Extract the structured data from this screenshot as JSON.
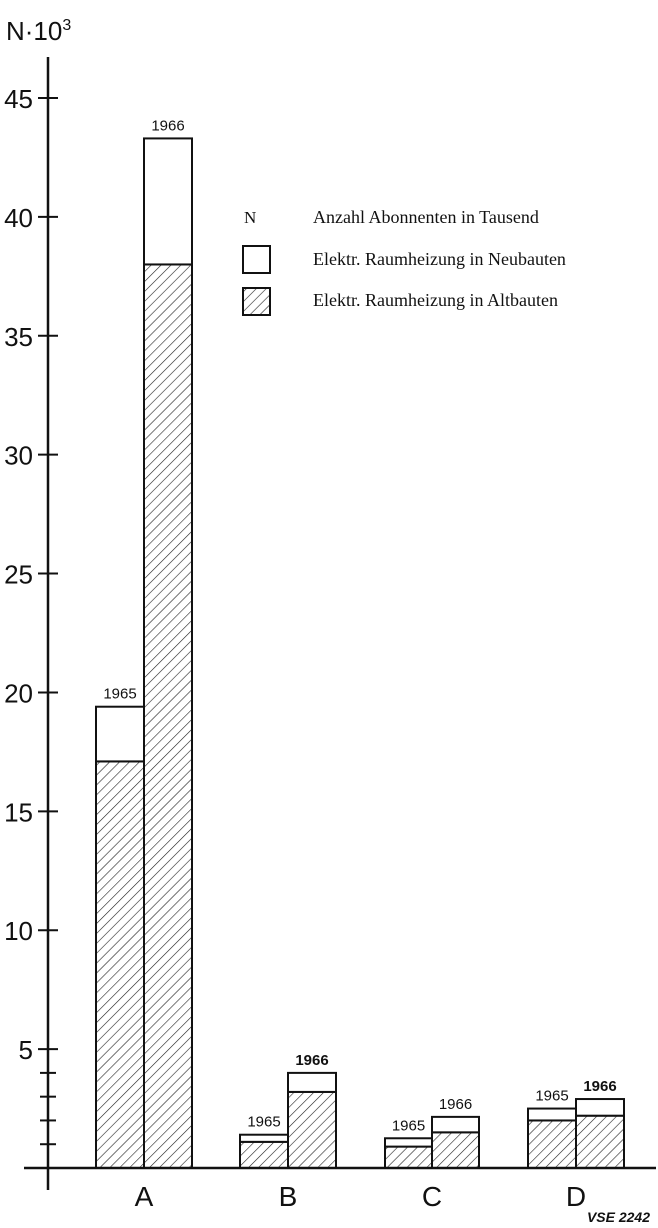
{
  "chart_data": {
    "type": "bar",
    "stacked": true,
    "ylabel_base": "N·10",
    "ylabel_exp": "3",
    "ylim": [
      0,
      47
    ],
    "yticks_labeled": [
      5,
      10,
      15,
      20,
      25,
      30,
      35,
      40,
      45
    ],
    "yticks_minor": [
      1,
      2,
      3,
      4
    ],
    "categories": [
      "A",
      "B",
      "C",
      "D"
    ],
    "bar_labels": [
      "1965",
      "1966"
    ],
    "series": [
      {
        "name": "Elektr. Raumheizung in Altbauten",
        "fill": "hatched",
        "values": {
          "A": [
            17.1,
            38.0
          ],
          "B": [
            1.1,
            3.2
          ],
          "C": [
            0.9,
            1.5
          ],
          "D": [
            2.0,
            2.2
          ]
        }
      },
      {
        "name": "Elektr. Raumheizung in Neubauten",
        "fill": "white",
        "values": {
          "A": [
            2.3,
            5.3
          ],
          "B": [
            0.3,
            0.8
          ],
          "C": [
            0.35,
            0.65
          ],
          "D": [
            0.5,
            0.7
          ]
        }
      }
    ],
    "totals": {
      "A": [
        19.4,
        43.3
      ],
      "B": [
        1.4,
        4.0
      ],
      "C": [
        1.25,
        2.15
      ],
      "D": [
        2.5,
        2.9
      ]
    },
    "legend": {
      "placement": "top-right",
      "symbol_n": "N",
      "entry_n": "Anzahl Abonnenten in Tausend",
      "entry_white": "Elektr. Raumheizung in Neubauten",
      "entry_hatched": "Elektr. Raumheizung in Altbauten"
    },
    "footer": "VSE 2242",
    "grid": false
  }
}
